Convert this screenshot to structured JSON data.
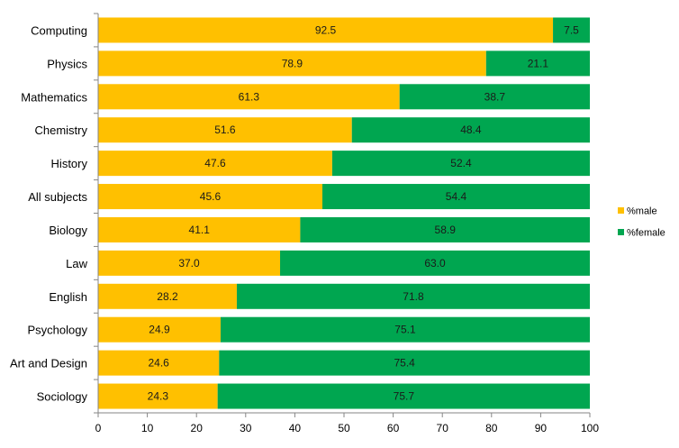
{
  "chart_data": {
    "type": "bar",
    "orientation": "horizontal",
    "stacked": true,
    "categories": [
      "Computing",
      "Physics",
      "Mathematics",
      "Chemistry",
      "History",
      "All subjects",
      "Biology",
      "Law",
      "English",
      "Psychology",
      "Art and Design",
      "Sociology"
    ],
    "series": [
      {
        "name": "%male",
        "color": "#FFC000",
        "values": [
          92.5,
          78.9,
          61.3,
          51.6,
          47.6,
          45.6,
          41.1,
          37.0,
          28.2,
          24.9,
          24.6,
          24.3
        ]
      },
      {
        "name": "%female",
        "color": "#00A650",
        "values": [
          7.5,
          21.1,
          38.7,
          48.4,
          52.4,
          54.4,
          58.9,
          63.0,
          71.8,
          75.1,
          75.4,
          75.7
        ]
      }
    ],
    "data_labels": true,
    "data_label_decimals": 1,
    "xlim": [
      0,
      100
    ],
    "xticks": [
      0,
      10,
      20,
      30,
      40,
      50,
      60,
      70,
      80,
      90,
      100
    ],
    "grid": false,
    "legend_position": "right"
  }
}
